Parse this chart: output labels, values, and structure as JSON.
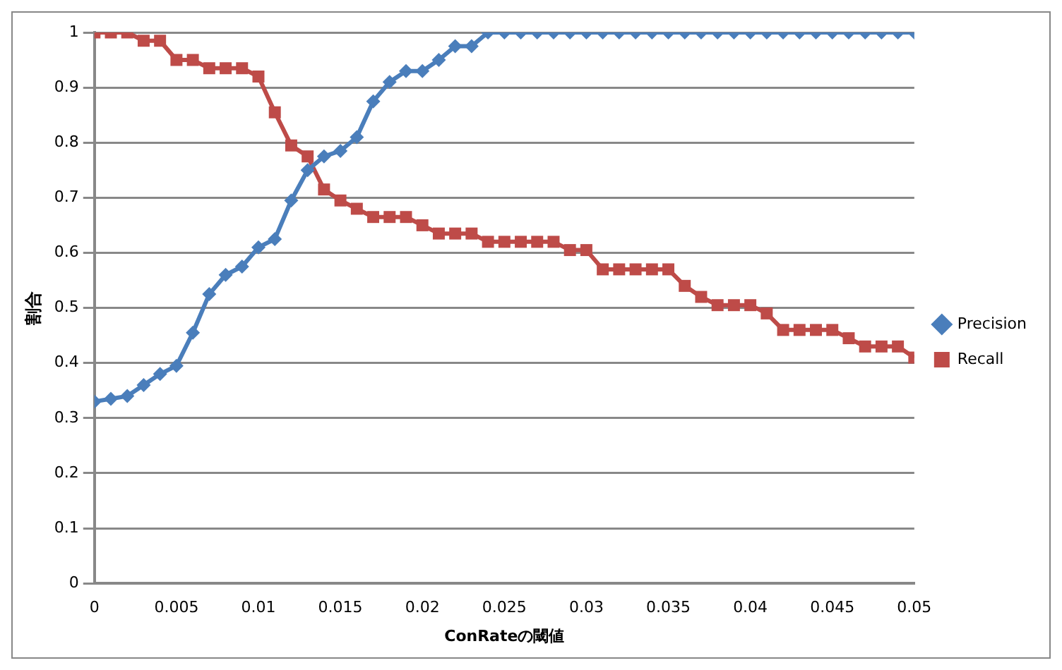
{
  "chart_data": {
    "type": "line",
    "xlabel": "ConRateの閾値",
    "ylabel": "割合",
    "x": [
      0,
      0.001,
      0.002,
      0.003,
      0.004,
      0.005,
      0.006,
      0.007,
      0.008,
      0.009,
      0.01,
      0.011,
      0.012,
      0.013,
      0.014,
      0.015,
      0.016,
      0.017,
      0.018,
      0.019,
      0.02,
      0.021,
      0.022,
      0.023,
      0.024,
      0.025,
      0.026,
      0.027,
      0.028,
      0.029,
      0.03,
      0.031,
      0.032,
      0.033,
      0.034,
      0.035,
      0.036,
      0.037,
      0.038,
      0.039,
      0.04,
      0.041,
      0.042,
      0.043,
      0.044,
      0.045,
      0.046,
      0.047,
      0.048,
      0.049,
      0.05
    ],
    "series": [
      {
        "name": "Precision",
        "color": "#4a7ebb",
        "marker": "diamond",
        "values": [
          0.33,
          0.335,
          0.34,
          0.36,
          0.38,
          0.395,
          0.455,
          0.525,
          0.56,
          0.575,
          0.61,
          0.625,
          0.695,
          0.75,
          0.775,
          0.785,
          0.81,
          0.875,
          0.91,
          0.93,
          0.93,
          0.95,
          0.975,
          0.975,
          1,
          1,
          1,
          1,
          1,
          1,
          1,
          1,
          1,
          1,
          1,
          1,
          1,
          1,
          1,
          1,
          1,
          1,
          1,
          1,
          1,
          1,
          1,
          1,
          1,
          1,
          1
        ]
      },
      {
        "name": "Recall",
        "color": "#be4b48",
        "marker": "square",
        "values": [
          1,
          1,
          1,
          0.985,
          0.985,
          0.95,
          0.95,
          0.935,
          0.935,
          0.935,
          0.92,
          0.855,
          0.795,
          0.775,
          0.715,
          0.695,
          0.68,
          0.665,
          0.665,
          0.665,
          0.65,
          0.635,
          0.635,
          0.635,
          0.62,
          0.62,
          0.62,
          0.62,
          0.62,
          0.605,
          0.605,
          0.57,
          0.57,
          0.57,
          0.57,
          0.57,
          0.54,
          0.52,
          0.505,
          0.505,
          0.505,
          0.49,
          0.46,
          0.46,
          0.46,
          0.46,
          0.445,
          0.43,
          0.43,
          0.43,
          0.41
        ]
      }
    ],
    "xlim": [
      0,
      0.05
    ],
    "xticks": [
      0,
      0.005,
      0.01,
      0.015,
      0.02,
      0.025,
      0.03,
      0.035,
      0.04,
      0.045,
      0.05
    ],
    "ylim": [
      0,
      1
    ],
    "yticks": [
      0,
      0.1,
      0.2,
      0.3,
      0.4,
      0.5,
      0.6,
      0.7,
      0.8,
      0.9,
      1
    ],
    "grid": "y",
    "legend": "right",
    "line_style": "solid"
  }
}
